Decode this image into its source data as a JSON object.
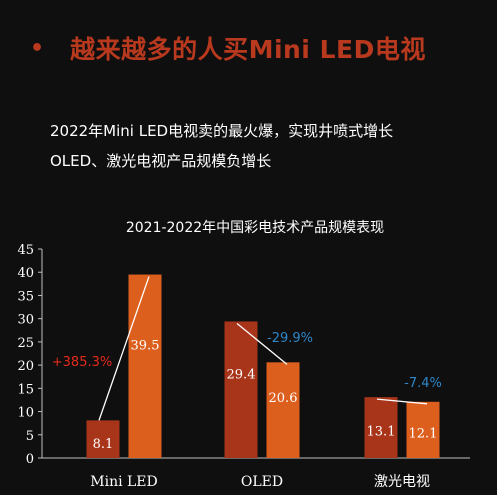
{
  "headline": {
    "bullet": "•",
    "text": "越来越多的人买Mini LED电视"
  },
  "subtitles": [
    "2022年Mini LED电视卖的最火爆，实现井喷式增长",
    "OLED、激光电视产品规模负增长"
  ],
  "colors": {
    "headline": "#b8391e",
    "bar_2021": "#a8341a",
    "bar_2022": "#dc5f1e",
    "growth_positive": "#e52a1a",
    "growth_negative": "#2e86c8",
    "background": "#0f0f0f"
  },
  "chart_data": {
    "type": "bar",
    "title": "2021-2022年中国彩电技术产品规模表现",
    "categories": [
      "Mini LED",
      "OLED",
      "激光电视"
    ],
    "series": [
      {
        "values": [
          8.1,
          29.4,
          13.1
        ]
      },
      {
        "values": [
          39.5,
          20.6,
          12.1
        ]
      }
    ],
    "growth_labels": [
      "+385.3%",
      "-29.9%",
      "-7.4%"
    ],
    "ylim": [
      0,
      45
    ],
    "yticks": [
      0,
      5,
      10,
      15,
      20,
      25,
      30,
      35,
      40,
      45
    ],
    "xlabel": "",
    "ylabel": "",
    "grid": false
  }
}
